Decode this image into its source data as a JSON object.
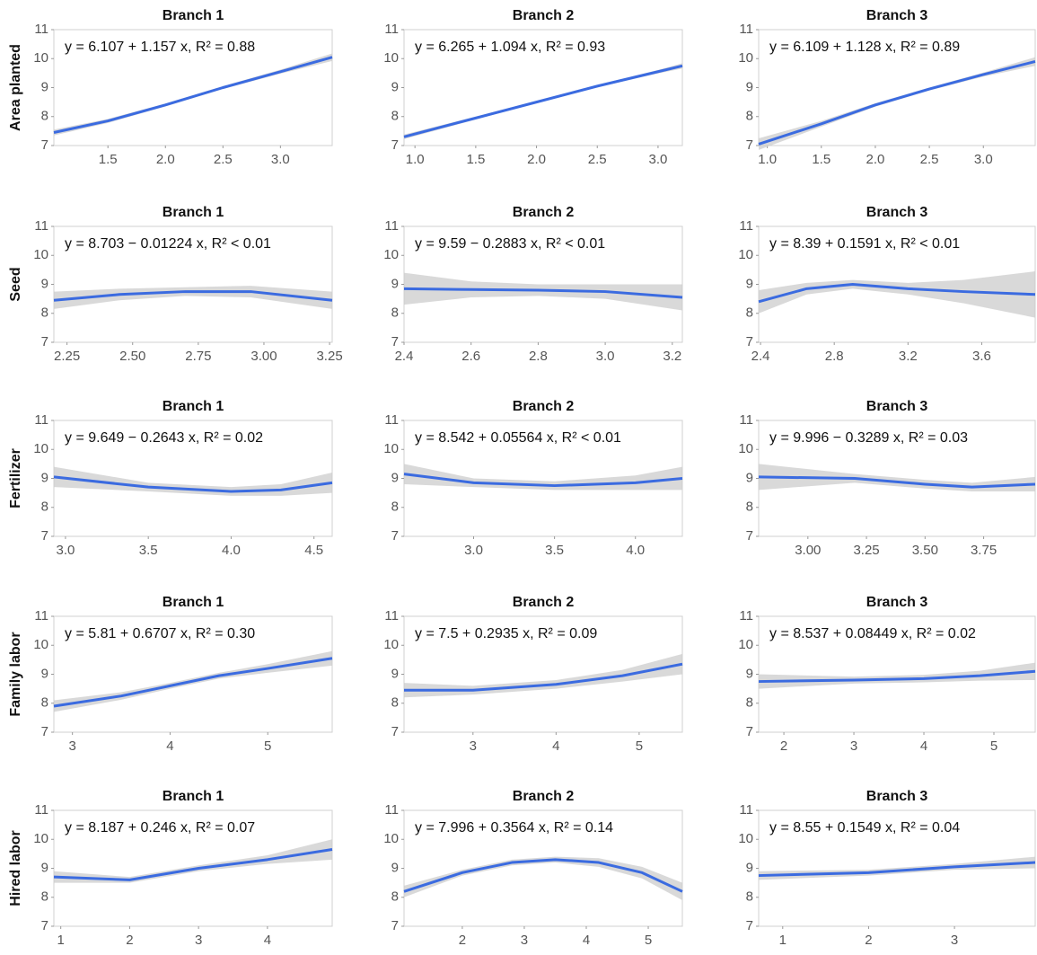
{
  "chart_data": [
    {
      "type": "line",
      "title": "Branch 1",
      "ylabel": "Area planted",
      "annotation": "y = 6.107 + 1.157 x, R² = 0.88",
      "x": [
        1.03,
        1.5,
        2.0,
        2.5,
        3.0,
        3.45
      ],
      "values": [
        7.45,
        7.85,
        8.4,
        9.0,
        9.55,
        10.05
      ],
      "lower": [
        7.35,
        7.78,
        8.35,
        8.95,
        9.48,
        9.92
      ],
      "upper": [
        7.55,
        7.92,
        8.45,
        9.05,
        9.62,
        10.18
      ],
      "color": "#3b6be0",
      "band_color": "#cccccc",
      "xlim": [
        1.03,
        3.45
      ],
      "xticks": [
        1.5,
        {
          "value": 2,
          "label": "2.0"
        },
        2.5,
        {
          "value": 3,
          "label": "3.0"
        }
      ],
      "ylim": [
        7,
        11
      ],
      "yticks": [
        7,
        8,
        9,
        10,
        11
      ]
    },
    {
      "type": "line",
      "title": "Branch 2",
      "annotation": "y = 6.265 + 1.094 x, R² = 0.93",
      "x": [
        0.91,
        1.5,
        2.0,
        2.5,
        3.0,
        3.2
      ],
      "values": [
        7.3,
        7.95,
        8.5,
        9.05,
        9.55,
        9.75
      ],
      "lower": [
        7.22,
        7.9,
        8.46,
        9.01,
        9.49,
        9.66
      ],
      "upper": [
        7.38,
        8.0,
        8.54,
        9.09,
        9.61,
        9.84
      ],
      "color": "#3b6be0",
      "band_color": "#cccccc",
      "xlim": [
        0.91,
        3.2
      ],
      "xticks": [
        {
          "value": 1,
          "label": "1.0"
        },
        1.5,
        {
          "value": 2,
          "label": "2.0"
        },
        2.5,
        {
          "value": 3,
          "label": "3.0"
        }
      ],
      "ylim": [
        7,
        11
      ],
      "yticks": [
        7,
        8,
        9,
        10,
        11
      ]
    },
    {
      "type": "line",
      "title": "Branch 3",
      "annotation": "y = 6.109 + 1.128 x, R² = 0.89",
      "x": [
        0.92,
        1.5,
        2.0,
        2.5,
        3.0,
        3.48
      ],
      "values": [
        7.05,
        7.75,
        8.4,
        8.95,
        9.45,
        9.9
      ],
      "lower": [
        6.85,
        7.65,
        8.34,
        8.9,
        9.38,
        9.75
      ],
      "upper": [
        7.25,
        7.85,
        8.46,
        9.0,
        9.52,
        10.05
      ],
      "color": "#3b6be0",
      "band_color": "#cccccc",
      "xlim": [
        0.92,
        3.48
      ],
      "xticks": [
        {
          "value": 1,
          "label": "1.0"
        },
        1.5,
        {
          "value": 2,
          "label": "2.0"
        },
        2.5,
        {
          "value": 3,
          "label": "3.0"
        }
      ],
      "ylim": [
        7,
        11
      ],
      "yticks": [
        7,
        8,
        9,
        10,
        11
      ]
    },
    {
      "type": "line",
      "title": "Branch 1",
      "ylabel": "Seed",
      "annotation": "y = 8.703 − 0.01224 x, R² < 0.01",
      "x": [
        2.2,
        2.45,
        2.7,
        2.95,
        3.26
      ],
      "values": [
        8.45,
        8.65,
        8.75,
        8.75,
        8.45
      ],
      "lower": [
        8.15,
        8.45,
        8.6,
        8.55,
        8.15
      ],
      "upper": [
        8.75,
        8.85,
        8.9,
        8.95,
        8.75
      ],
      "color": "#3b6be0",
      "band_color": "#cccccc",
      "xlim": [
        2.2,
        3.26
      ],
      "xticks": [
        2.25,
        {
          "value": 2.5,
          "label": "2.50"
        },
        2.75,
        {
          "value": 3,
          "label": "3.00"
        },
        3.25
      ],
      "ylim": [
        7,
        11
      ],
      "yticks": [
        7,
        8,
        9,
        10,
        11
      ]
    },
    {
      "type": "line",
      "title": "Branch 2",
      "annotation": "y = 9.59 − 0.2883 x, R² < 0.01",
      "x": [
        2.4,
        2.6,
        2.8,
        3.0,
        3.23
      ],
      "values": [
        8.85,
        8.82,
        8.8,
        8.75,
        8.55
      ],
      "lower": [
        8.3,
        8.55,
        8.6,
        8.5,
        8.1
      ],
      "upper": [
        9.4,
        9.1,
        9.0,
        9.0,
        9.0
      ],
      "color": "#3b6be0",
      "band_color": "#cccccc",
      "xlim": [
        2.4,
        3.23
      ],
      "xticks": [
        2.4,
        2.6,
        2.8,
        {
          "value": 3,
          "label": "3.0"
        },
        3.2
      ],
      "ylim": [
        7,
        11
      ],
      "yticks": [
        7,
        8,
        9,
        10,
        11
      ]
    },
    {
      "type": "line",
      "title": "Branch 3",
      "annotation": "y = 8.39 + 0.1591 x, R² < 0.01",
      "x": [
        2.39,
        2.65,
        2.9,
        3.2,
        3.5,
        3.89
      ],
      "values": [
        8.4,
        8.85,
        9.0,
        8.85,
        8.75,
        8.65
      ],
      "lower": [
        8.0,
        8.65,
        8.85,
        8.65,
        8.35,
        7.85
      ],
      "upper": [
        8.8,
        9.05,
        9.15,
        9.05,
        9.15,
        9.45
      ],
      "color": "#3b6be0",
      "band_color": "#cccccc",
      "xlim": [
        2.39,
        3.89
      ],
      "xticks": [
        2.4,
        2.8,
        3.2,
        3.6
      ],
      "ylim": [
        7,
        11
      ],
      "yticks": [
        7,
        8,
        9,
        10,
        11
      ]
    },
    {
      "type": "line",
      "title": "Branch 1",
      "ylabel": "Fertilizer",
      "annotation": "y = 9.649 − 0.2643 x, R² = 0.02",
      "x": [
        2.93,
        3.5,
        4.0,
        4.3,
        4.61
      ],
      "values": [
        9.05,
        8.7,
        8.55,
        8.6,
        8.85
      ],
      "lower": [
        8.7,
        8.55,
        8.4,
        8.4,
        8.5
      ],
      "upper": [
        9.4,
        8.85,
        8.7,
        8.8,
        9.2
      ],
      "color": "#3b6be0",
      "band_color": "#cccccc",
      "xlim": [
        2.93,
        4.61
      ],
      "xticks": [
        {
          "value": 3,
          "label": "3.0"
        },
        3.5,
        {
          "value": 4,
          "label": "4.0"
        },
        4.5
      ],
      "ylim": [
        7,
        11
      ],
      "yticks": [
        7,
        8,
        9,
        10,
        11
      ]
    },
    {
      "type": "line",
      "title": "Branch 2",
      "annotation": "y = 8.542 + 0.05564 x, R² < 0.01",
      "x": [
        2.57,
        3.0,
        3.5,
        4.0,
        4.29
      ],
      "values": [
        9.15,
        8.85,
        8.75,
        8.85,
        9.0
      ],
      "lower": [
        8.8,
        8.7,
        8.6,
        8.6,
        8.6
      ],
      "upper": [
        9.5,
        9.0,
        8.9,
        9.1,
        9.4
      ],
      "color": "#3b6be0",
      "band_color": "#cccccc",
      "xlim": [
        2.57,
        4.29
      ],
      "xticks": [
        {
          "value": 3,
          "label": "3.0"
        },
        3.5,
        {
          "value": 4,
          "label": "4.0"
        }
      ],
      "ylim": [
        7,
        11
      ],
      "yticks": [
        7,
        8,
        9,
        10,
        11
      ]
    },
    {
      "type": "line",
      "title": "Branch 3",
      "annotation": "y = 9.996 − 0.3289 x, R² = 0.03",
      "x": [
        2.79,
        3.2,
        3.5,
        3.7,
        3.97
      ],
      "values": [
        9.05,
        9.0,
        8.8,
        8.7,
        8.8
      ],
      "lower": [
        8.6,
        8.85,
        8.65,
        8.55,
        8.55
      ],
      "upper": [
        9.5,
        9.15,
        8.95,
        8.85,
        9.05
      ],
      "color": "#3b6be0",
      "band_color": "#cccccc",
      "xlim": [
        2.79,
        3.97
      ],
      "xticks": [
        {
          "value": 3,
          "label": "3.00"
        },
        3.25,
        {
          "value": 3.5,
          "label": "3.50"
        },
        3.75
      ],
      "ylim": [
        7,
        11
      ],
      "yticks": [
        7,
        8,
        9,
        10,
        11
      ]
    },
    {
      "type": "line",
      "title": "Branch 1",
      "ylabel": "Family labor",
      "annotation": "y = 5.81 + 0.6707 x, R² = 0.30",
      "x": [
        2.81,
        3.5,
        4.0,
        4.5,
        5.0,
        5.66
      ],
      "values": [
        7.9,
        8.25,
        8.6,
        8.95,
        9.2,
        9.55
      ],
      "lower": [
        7.7,
        8.12,
        8.5,
        8.85,
        9.05,
        9.3
      ],
      "upper": [
        8.1,
        8.38,
        8.7,
        9.05,
        9.35,
        9.8
      ],
      "color": "#3b6be0",
      "band_color": "#cccccc",
      "xlim": [
        2.81,
        5.66
      ],
      "xticks": [
        3,
        4,
        5
      ],
      "ylim": [
        7,
        11
      ],
      "yticks": [
        7,
        8,
        9,
        10,
        11
      ]
    },
    {
      "type": "line",
      "title": "Branch 2",
      "annotation": "y = 7.5 + 0.2935 x, R² = 0.09",
      "x": [
        2.17,
        3.0,
        4.0,
        4.8,
        5.52
      ],
      "values": [
        8.45,
        8.45,
        8.65,
        8.95,
        9.35
      ],
      "lower": [
        8.2,
        8.3,
        8.5,
        8.75,
        9.0
      ],
      "upper": [
        8.7,
        8.6,
        8.8,
        9.15,
        9.7
      ],
      "color": "#3b6be0",
      "band_color": "#cccccc",
      "xlim": [
        2.17,
        5.52
      ],
      "xticks": [
        3,
        4,
        5
      ],
      "ylim": [
        7,
        11
      ],
      "yticks": [
        7,
        8,
        9,
        10,
        11
      ]
    },
    {
      "type": "line",
      "title": "Branch 3",
      "annotation": "y = 8.537 + 0.08449 x, R² = 0.02",
      "x": [
        1.64,
        3.0,
        4.0,
        4.8,
        5.59
      ],
      "values": [
        8.75,
        8.8,
        8.85,
        8.95,
        9.1
      ],
      "lower": [
        8.5,
        8.68,
        8.72,
        8.78,
        8.8
      ],
      "upper": [
        9.0,
        8.92,
        8.98,
        9.12,
        9.4
      ],
      "color": "#3b6be0",
      "band_color": "#cccccc",
      "xlim": [
        1.64,
        5.59
      ],
      "xticks": [
        2,
        3,
        4,
        5
      ],
      "ylim": [
        7,
        11
      ],
      "yticks": [
        7,
        8,
        9,
        10,
        11
      ]
    },
    {
      "type": "line",
      "title": "Branch 1",
      "ylabel": "Hired labor",
      "annotation": "y = 8.187 + 0.246 x, R² = 0.07",
      "x": [
        0.9,
        2.0,
        3.0,
        4.0,
        4.94
      ],
      "values": [
        8.7,
        8.6,
        9.0,
        9.3,
        9.65
      ],
      "lower": [
        8.5,
        8.5,
        8.9,
        9.15,
        9.3
      ],
      "upper": [
        8.9,
        8.7,
        9.1,
        9.45,
        10.0
      ],
      "color": "#3b6be0",
      "band_color": "#cccccc",
      "xlim": [
        0.9,
        4.94
      ],
      "xticks": [
        1,
        2,
        3,
        4
      ],
      "ylim": [
        7,
        11
      ],
      "yticks": [
        7,
        8,
        9,
        10,
        11
      ]
    },
    {
      "type": "line",
      "title": "Branch 2",
      "annotation": "y = 7.996 + 0.3564 x, R² = 0.14",
      "x": [
        1.06,
        2.0,
        2.8,
        3.5,
        4.2,
        4.9,
        5.55
      ],
      "values": [
        8.2,
        8.85,
        9.2,
        9.3,
        9.2,
        8.85,
        8.2
      ],
      "lower": [
        8.0,
        8.75,
        9.1,
        9.2,
        9.05,
        8.65,
        7.9
      ],
      "upper": [
        8.4,
        8.95,
        9.3,
        9.4,
        9.35,
        9.05,
        8.5
      ],
      "color": "#3b6be0",
      "band_color": "#cccccc",
      "xlim": [
        1.06,
        5.55
      ],
      "xticks": [
        2,
        3,
        4,
        5
      ],
      "ylim": [
        7,
        11
      ],
      "yticks": [
        7,
        8,
        9,
        10,
        11
      ]
    },
    {
      "type": "line",
      "title": "Branch 3",
      "annotation": "y = 8.55 + 0.1549 x, R² = 0.04",
      "x": [
        0.72,
        2.0,
        3.0,
        3.94
      ],
      "values": [
        8.75,
        8.85,
        9.05,
        9.2
      ],
      "lower": [
        8.6,
        8.75,
        8.95,
        9.0
      ],
      "upper": [
        8.9,
        8.95,
        9.15,
        9.4
      ],
      "color": "#3b6be0",
      "band_color": "#cccccc",
      "xlim": [
        0.72,
        3.94
      ],
      "xticks": [
        1,
        2,
        3
      ],
      "ylim": [
        7,
        11
      ],
      "yticks": [
        7,
        8,
        9,
        10,
        11
      ]
    }
  ]
}
